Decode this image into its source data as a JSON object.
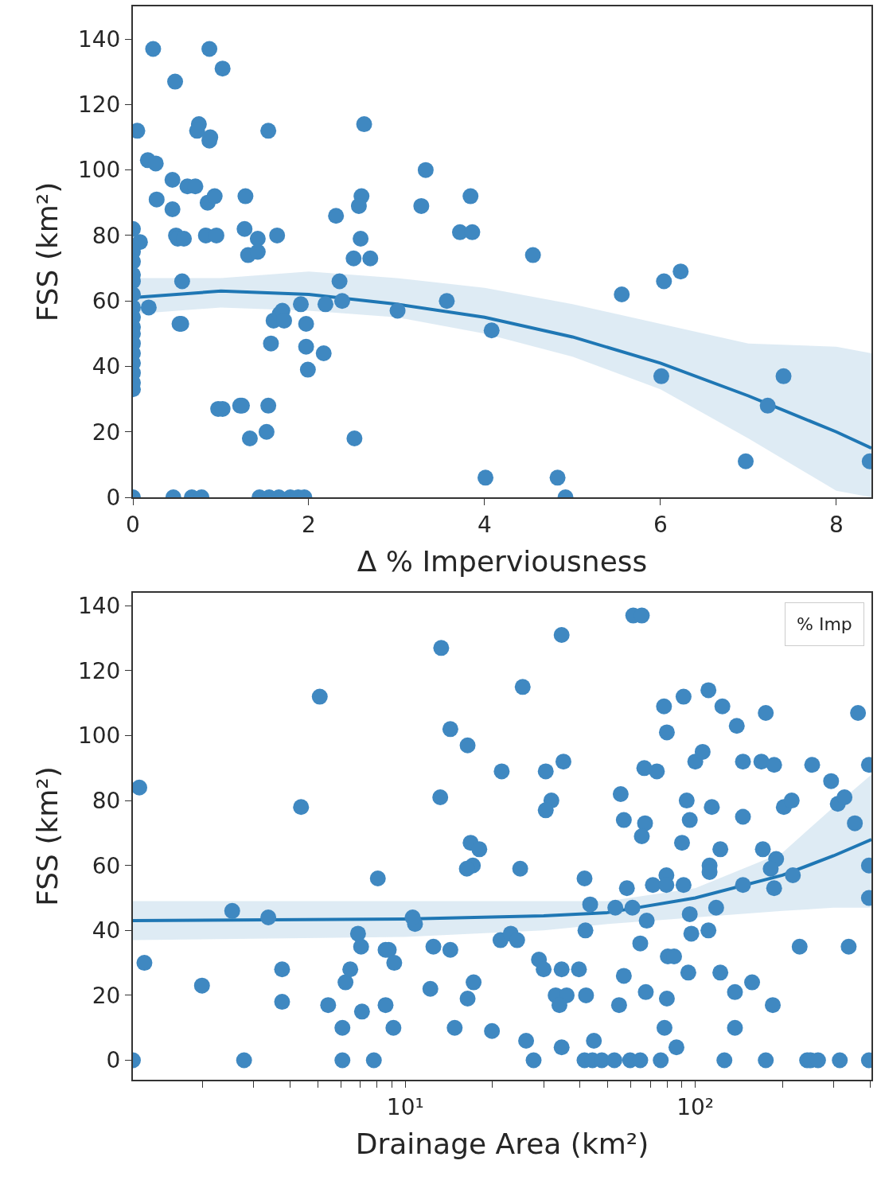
{
  "chart_data": [
    {
      "type": "scatter",
      "xlabel": "Δ % Imperviousness",
      "ylabel": "FSS (km²)",
      "xlim": [
        0,
        8.4
      ],
      "ylim": [
        0,
        150
      ],
      "xticks": [
        0,
        2,
        4,
        6,
        8
      ],
      "yticks": [
        0,
        20,
        40,
        60,
        80,
        100,
        120,
        140
      ],
      "marker": "circle",
      "series": [
        {
          "color": "#3f88c1",
          "x": [
            0.23,
            0.87,
            1.02,
            0.48,
            0.05,
            0.75,
            0.73,
            0.87,
            0.88,
            1.54,
            2.63,
            0.17,
            0.26,
            0.45,
            0.62,
            0.71,
            0.27,
            0.45,
            0.85,
            0.93,
            1.28,
            3.33,
            3.84,
            2.6,
            2.57,
            3.28,
            2.31,
            0.49,
            0.51,
            0.58,
            0.83,
            0.95,
            1.27,
            1.42,
            1.31,
            1.42,
            1.64,
            2.59,
            2.51,
            2.7,
            3.72,
            3.86,
            4.55,
            0.08,
            0.56,
            0.18,
            0.53,
            0.55,
            1.6,
            1.67,
            1.7,
            1.72,
            1.57,
            1.91,
            1.97,
            1.97,
            2.17,
            1.99,
            2.19,
            2.38,
            2.35,
            3.01,
            3.57,
            4.08,
            5.56,
            6.04,
            6.23,
            6.01,
            7.4,
            7.22,
            6.97,
            8.38,
            0.97,
            1.02,
            1.22,
            1.24,
            1.54,
            1.33,
            1.52,
            2.52,
            4.01,
            4.83,
            0,
            0.46,
            0.67,
            0.78,
            1.44,
            1.55,
            1.66,
            1.79,
            1.88,
            1.95,
            4.92,
            0,
            0,
            0,
            0,
            0,
            0,
            0,
            0,
            0,
            0,
            0,
            0,
            0,
            0,
            0,
            0
          ],
          "values": [
            137,
            137,
            131,
            127,
            112,
            114,
            112,
            109,
            110,
            112,
            114,
            103,
            102,
            97,
            95,
            95,
            91,
            88,
            90,
            92,
            92,
            100,
            92,
            92,
            89,
            89,
            86,
            80,
            79,
            79,
            80,
            80,
            82,
            79,
            74,
            75,
            80,
            79,
            73,
            73,
            81,
            81,
            74,
            78,
            66,
            58,
            53,
            53,
            54,
            56,
            57,
            54,
            47,
            59,
            53,
            46,
            44,
            39,
            59,
            60,
            66,
            57,
            60,
            51,
            62,
            66,
            69,
            37,
            37,
            28,
            11,
            11,
            27,
            27,
            28,
            28,
            28,
            18,
            20,
            18,
            6,
            6,
            0,
            0,
            0,
            0,
            0,
            0,
            0,
            0,
            0,
            0,
            0,
            82,
            75,
            72,
            68,
            66,
            62,
            58,
            55,
            52,
            50,
            47,
            44,
            41,
            38,
            35,
            33
          ]
        },
        {
          "type": "line",
          "marker": "none",
          "color": "#1f77b4",
          "x": [
            0,
            1,
            2,
            3,
            4,
            5,
            6,
            7,
            8,
            8.4
          ],
          "values": [
            61,
            63,
            62,
            59,
            55,
            49,
            41,
            31,
            20,
            15
          ],
          "lower": [
            56,
            58,
            57,
            55,
            50,
            43,
            33,
            18,
            2,
            0
          ],
          "upper": [
            67,
            67,
            69,
            67,
            64,
            59,
            53,
            47,
            46,
            44
          ]
        }
      ]
    },
    {
      "type": "scatter",
      "xlabel": "Drainage Area (km²)",
      "ylabel": "FSS (km²)",
      "log": "x",
      "xlim": [
        1.15,
        405
      ],
      "ylim": [
        -6,
        144
      ],
      "xticks": [
        {
          "value": 2,
          "label": null
        },
        {
          "value": 3,
          "label": null
        },
        {
          "value": 4,
          "label": null
        },
        {
          "value": 5,
          "label": null
        },
        {
          "value": 6,
          "label": null
        },
        {
          "value": 7,
          "label": null
        },
        {
          "value": 8,
          "label": null
        },
        {
          "value": 9,
          "label": null
        },
        {
          "value": 10,
          "label": "10¹"
        },
        {
          "value": 20,
          "label": null
        },
        {
          "value": 30,
          "label": null
        },
        {
          "value": 40,
          "label": null
        },
        {
          "value": 50,
          "label": null
        },
        {
          "value": 60,
          "label": null
        },
        {
          "value": 70,
          "label": null
        },
        {
          "value": 80,
          "label": null
        },
        {
          "value": 90,
          "label": null
        },
        {
          "value": 100,
          "label": "10²"
        },
        {
          "value": 200,
          "label": null
        },
        {
          "value": 300,
          "label": null
        },
        {
          "value": 400,
          "label": null
        }
      ],
      "yticks": [
        0,
        20,
        40,
        60,
        80,
        100,
        120,
        140
      ],
      "legend_title": "% Imp",
      "marker": "circle",
      "series": [
        {
          "color": "#3f88c1",
          "x": [
            1.15,
            1.21,
            1.26,
            1.99,
            2.53,
            2.78,
            3.37,
            3.76,
            3.76,
            4.37,
            5.07,
            5.42,
            6.07,
            6.07,
            6.22,
            6.46,
            6.87,
            7.04,
            7.09,
            7.79,
            8.04,
            8.55,
            8.77,
            8.55,
            9.16,
            9.1,
            13.3,
            34.6,
            25.4,
            14.3,
            16.4,
            21.5,
            30.5,
            35.1,
            13.2,
            31.9,
            30.5,
            55.3,
            56.7,
            16.8,
            18.0,
            17.1,
            16.3,
            24.9,
            41.5,
            58.1,
            43.4,
            53.0,
            10.8,
            41.8,
            10.6,
            12.5,
            14.3,
            21.3,
            23.1,
            24.3,
            28.9,
            30.0,
            34.6,
            39.7,
            56.7,
            12.2,
            17.2,
            16.4,
            33.0,
            36.0,
            34.0,
            42.0,
            54.6,
            14.8,
            19.9,
            26.1,
            34.6,
            44.7,
            27.7,
            41.5,
            44.2,
            47.6,
            52.6,
            59.6,
            61.1,
            65.4,
            78,
            91.1,
            111,
            124,
            79.8,
            139,
            175,
            364,
            66.7,
            73.7,
            100,
            106,
            146,
            169,
            187,
            253,
            294,
            397,
            93.4,
            114,
            146,
            202,
            215,
            310,
            327,
            355,
            67.1,
            65.4,
            95.7,
            90,
            122,
            171,
            190,
            112,
            112,
            182,
            217,
            397,
            71.4,
            79.5,
            79.5,
            91.1,
            146,
            187,
            60.7,
            118,
            397,
            68,
            95.7,
            111,
            96.9,
            64.6,
            229,
            338,
            80.4,
            84.5,
            94.6,
            122,
            67.5,
            79.8,
            137,
            157,
            185,
            78.3,
            137,
            86.1,
            64.6,
            76,
            126,
            175,
            243,
            250,
            265,
            315,
            397
          ],
          "values": [
            0,
            84,
            30,
            23,
            46,
            0,
            44,
            28,
            18,
            78,
            112,
            17,
            10,
            0,
            24,
            28,
            39,
            35,
            15,
            0,
            56,
            34,
            34,
            17,
            30,
            10,
            127,
            131,
            115,
            102,
            97,
            89,
            89,
            92,
            81,
            80,
            77,
            82,
            74,
            67,
            65,
            60,
            59,
            59,
            56,
            53,
            48,
            47,
            42,
            40,
            44,
            35,
            34,
            37,
            39,
            37,
            31,
            28,
            28,
            28,
            26,
            22,
            24,
            19,
            20,
            20,
            17,
            20,
            17,
            10,
            9,
            6,
            4,
            6,
            0,
            0,
            0,
            0,
            0,
            0,
            137,
            137,
            109,
            112,
            114,
            109,
            101,
            103,
            107,
            107,
            90,
            89,
            92,
            95,
            92,
            92,
            91,
            91,
            86,
            91,
            80,
            78,
            75,
            78,
            80,
            79,
            81,
            73,
            73,
            69,
            74,
            67,
            65,
            65,
            62,
            60,
            58,
            59,
            57,
            60,
            54,
            57,
            54,
            54,
            54,
            53,
            47,
            47,
            50,
            43,
            45,
            40,
            39,
            36,
            35,
            35,
            32,
            32,
            27,
            27,
            21,
            19,
            21,
            24,
            17,
            10,
            10,
            4,
            0,
            0,
            0,
            0,
            0,
            0,
            0,
            0,
            0
          ]
        },
        {
          "type": "line",
          "marker": "none",
          "color": "#1f77b4",
          "x": [
            1.15,
            10,
            30,
            50,
            100,
            200,
            300,
            405
          ],
          "values": [
            43,
            43.5,
            44.5,
            45.5,
            50,
            57,
            63,
            68
          ],
          "lower": [
            37,
            38,
            40,
            42,
            44,
            46,
            47,
            47
          ],
          "upper": [
            49,
            49,
            49,
            49,
            53,
            64,
            78,
            88
          ]
        }
      ]
    }
  ]
}
